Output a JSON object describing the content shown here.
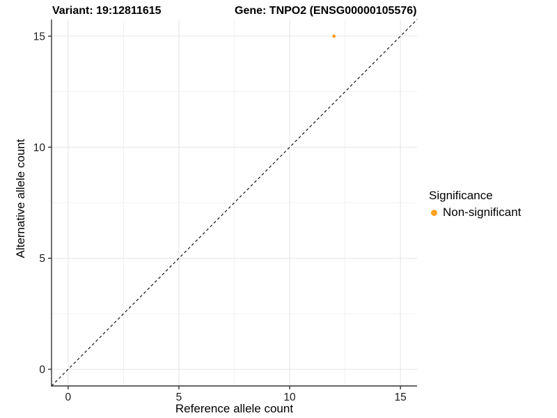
{
  "figure": {
    "title_variant": "Variant: 19:12811615",
    "title_gene": "Gene: TNPO2 (ENSG00000105576)"
  },
  "chart_data": {
    "type": "scatter",
    "title": "Variant: 19:12811615    Gene: TNPO2 (ENSG00000105576)",
    "xlabel": "Reference allele count",
    "ylabel": "Alternative allele count",
    "xlim": [
      -0.75,
      15.75
    ],
    "ylim": [
      -0.75,
      15.75
    ],
    "x_ticks": [
      0,
      5,
      10,
      15
    ],
    "y_ticks": [
      0,
      5,
      10,
      15
    ],
    "x_minor_ticks": [
      2.5,
      7.5,
      12.5
    ],
    "y_minor_ticks": [
      2.5,
      7.5,
      12.5
    ],
    "grid": "on",
    "legend_position": "right",
    "legend": {
      "title": "Significance",
      "entries": [
        {
          "label": "Non-significant",
          "color": "#FFA01E"
        }
      ]
    },
    "series": [
      {
        "name": "Non-significant",
        "color": "#FFA01E",
        "points": [
          {
            "x": 12,
            "y": 15
          }
        ]
      }
    ],
    "reference_line": {
      "style": "dashed",
      "slope": 1,
      "intercept": 0,
      "color": "#111111"
    },
    "colors": {
      "point": "#FFA01E",
      "grid_major": "#e4e4e4",
      "grid_minor": "#f1f1f1",
      "axis": "#333333",
      "tick_label": "#1a1a1a"
    }
  }
}
